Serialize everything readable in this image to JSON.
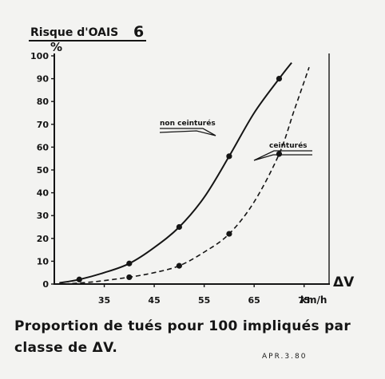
{
  "chart_data": {
    "type": "line",
    "title": "Risque d'OAIS",
    "title_number": "6",
    "ylabel": "%",
    "xlabel": "km/h",
    "axis_symbol": "ΔV",
    "xlim": [
      25,
      80
    ],
    "ylim": [
      0,
      100
    ],
    "x_ticks": [
      "35",
      "45",
      "55",
      "65",
      "75"
    ],
    "x_tick_values": [
      35,
      45,
      55,
      65,
      75
    ],
    "y_ticks": [
      "0",
      "10",
      "20",
      "30",
      "40",
      "50",
      "60",
      "70",
      "80",
      "90",
      "100"
    ],
    "y_tick_values": [
      0,
      10,
      20,
      30,
      40,
      50,
      60,
      70,
      80,
      90,
      100
    ],
    "series": [
      {
        "name": "non ceinturés",
        "style": "solid",
        "points": [
          [
            30,
            2
          ],
          [
            40,
            9
          ],
          [
            50,
            25
          ],
          [
            60,
            56
          ],
          [
            70,
            90
          ]
        ],
        "curve": [
          [
            26,
            0.5
          ],
          [
            30,
            2
          ],
          [
            35,
            5
          ],
          [
            40,
            9
          ],
          [
            45,
            16
          ],
          [
            50,
            25
          ],
          [
            55,
            38
          ],
          [
            60,
            56
          ],
          [
            65,
            75
          ],
          [
            70,
            90
          ],
          [
            72.5,
            97
          ]
        ]
      },
      {
        "name": "ceinturés",
        "style": "dashed",
        "points": [
          [
            40,
            3
          ],
          [
            50,
            8
          ],
          [
            60,
            22
          ],
          [
            70,
            57
          ]
        ],
        "curve": [
          [
            27,
            0
          ],
          [
            33,
            1
          ],
          [
            40,
            3
          ],
          [
            45,
            5
          ],
          [
            50,
            8
          ],
          [
            55,
            14
          ],
          [
            60,
            22
          ],
          [
            65,
            36
          ],
          [
            70,
            57
          ],
          [
            73,
            76
          ],
          [
            76,
            95
          ]
        ]
      }
    ]
  },
  "caption": {
    "line1": "Proportion de tués pour 100 impliqués par",
    "line2": "classe de ΔV."
  },
  "reference": "APR.3.80"
}
